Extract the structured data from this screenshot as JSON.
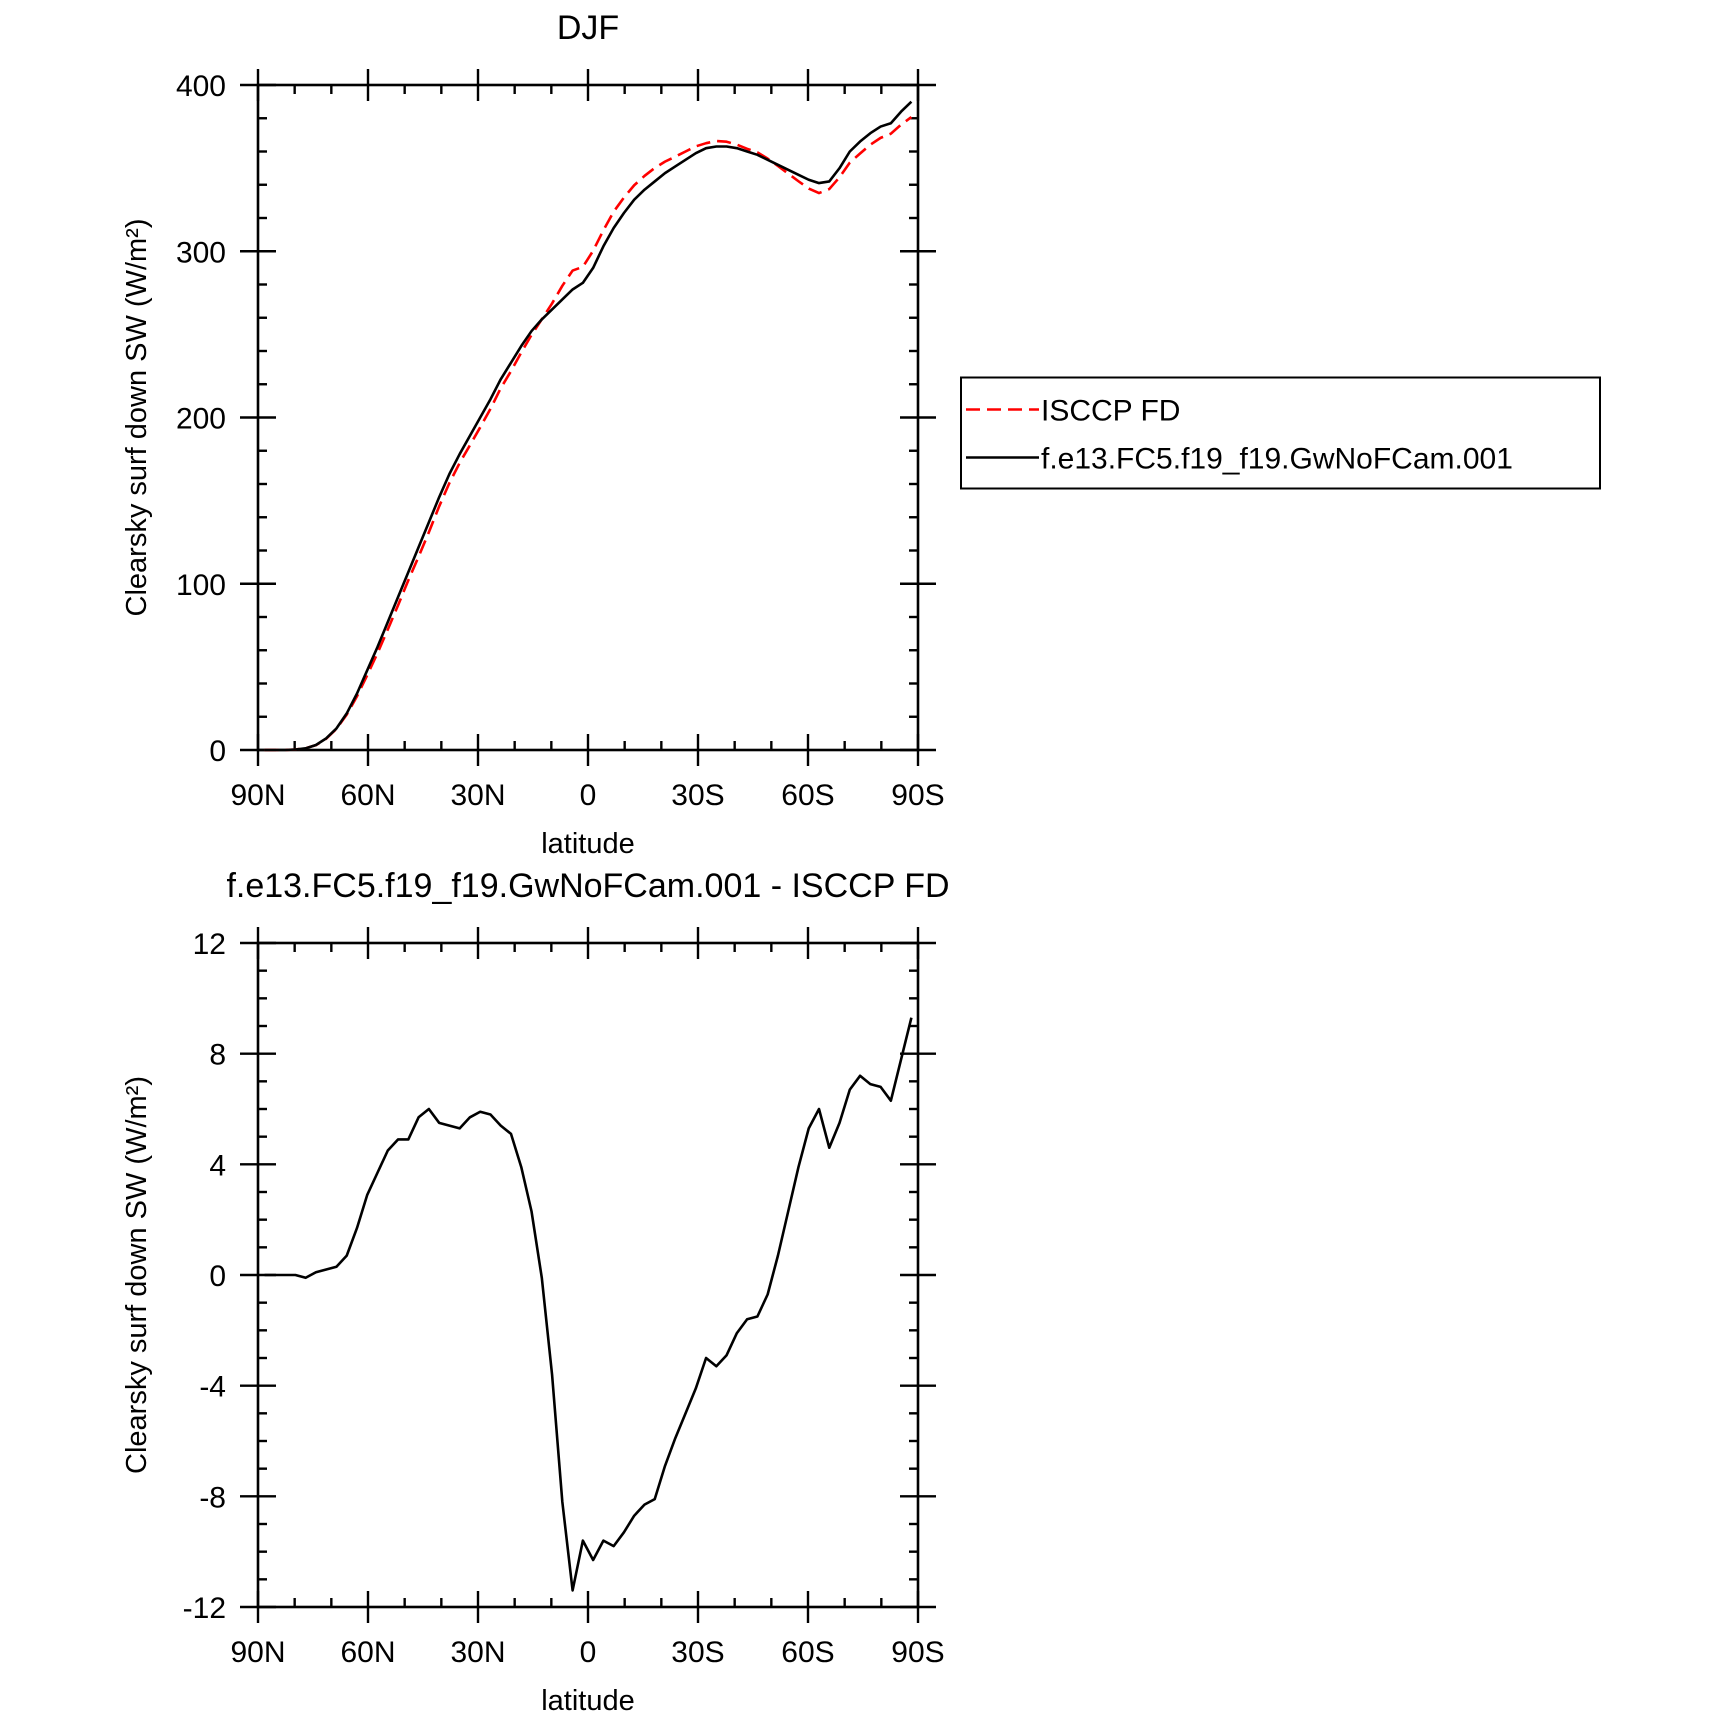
{
  "chart_data": [
    {
      "type": "line",
      "title": "DJF",
      "xlabel": "latitude",
      "ylabel": "Clearsky surf down SW (W/m²)",
      "x": [
        88.2,
        85.4,
        82.6,
        79.8,
        77,
        74.2,
        71.4,
        68.6,
        65.8,
        63,
        60.2,
        57.4,
        54.6,
        51.8,
        49,
        46.2,
        43.4,
        40.6,
        37.8,
        35,
        32.2,
        29.4,
        26.6,
        23.8,
        21,
        18.2,
        15.4,
        12.6,
        9.8,
        7,
        4.2,
        1.4,
        -1.4,
        -4.2,
        -7,
        -9.8,
        -12.6,
        -15.4,
        -18.2,
        -21,
        -23.8,
        -26.6,
        -29.4,
        -32.2,
        -35,
        -37.8,
        -40.6,
        -43.4,
        -46.2,
        -49,
        -51.8,
        -54.6,
        -57.4,
        -60.2,
        -63,
        -65.8,
        -68.6,
        -71.4,
        -74.2,
        -77,
        -79.8,
        -82.6,
        -85.4,
        -88.2
      ],
      "series": [
        {
          "name": "ISCCP FD",
          "color": "#ff0000",
          "line_style": "dashed",
          "values": [
            0,
            0,
            0,
            0.3,
            1.1,
            2.9,
            6.8,
            12.7,
            21.3,
            32.3,
            45.1,
            58.3,
            72.5,
            87.1,
            102.1,
            116.3,
            131,
            146.5,
            160.6,
            172.7,
            183.3,
            194.1,
            205.2,
            217.6,
            227.9,
            239.1,
            249.7,
            259.1,
            268.6,
            279.2,
            288.4,
            290.6,
            300.3,
            312.6,
            323.8,
            332.3,
            339.7,
            345.3,
            350.1,
            353.9,
            356.9,
            360,
            363.1,
            365,
            366.3,
            365.9,
            364.1,
            361.6,
            359.5,
            355.7,
            351.3,
            346.7,
            342.1,
            337.7,
            335,
            337.4,
            344.5,
            353.3,
            358.8,
            364.1,
            368.2,
            370.7,
            376.2,
            380.7
          ]
        },
        {
          "name": "f.e13.FC5.f19_f19.GwNoFCam.001",
          "color": "#000000",
          "line_style": "solid",
          "values": [
            0,
            0,
            0,
            0.3,
            1,
            3,
            7,
            13,
            22,
            34,
            48,
            62,
            77,
            92,
            107,
            122,
            137,
            152,
            166,
            178,
            189,
            200,
            211,
            223,
            233,
            243,
            252,
            259,
            265,
            271,
            277,
            281,
            290,
            303,
            314,
            323,
            331,
            337,
            342,
            347,
            351,
            355,
            359,
            362,
            363,
            363,
            362,
            360,
            358,
            355,
            352,
            349,
            346,
            343,
            341,
            342,
            350,
            360,
            366,
            371,
            375,
            377,
            384,
            390
          ]
        }
      ],
      "xlim": [
        90,
        -90
      ],
      "xticks": [
        {
          "value": 90,
          "label": "90N"
        },
        {
          "value": 60,
          "label": "60N"
        },
        {
          "value": 30,
          "label": "30N"
        },
        0,
        {
          "value": -30,
          "label": "30S"
        },
        {
          "value": -60,
          "label": "60S"
        },
        {
          "value": -90,
          "label": "90S"
        }
      ],
      "ylim": [
        0,
        400
      ],
      "yticks": [
        0,
        100,
        200,
        300,
        400
      ],
      "legend": "right"
    },
    {
      "type": "line",
      "title": "f.e13.FC5.f19_f19.GwNoFCam.001 - ISCCP FD",
      "xlabel": "latitude",
      "ylabel": "Clearsky surf down SW (W/m²)",
      "x": [
        88.2,
        85.4,
        82.6,
        79.8,
        77,
        74.2,
        71.4,
        68.6,
        65.8,
        63,
        60.2,
        57.4,
        54.6,
        51.8,
        49,
        46.2,
        43.4,
        40.6,
        37.8,
        35,
        32.2,
        29.4,
        26.6,
        23.8,
        21,
        18.2,
        15.4,
        12.6,
        9.8,
        7,
        4.2,
        1.4,
        -1.4,
        -4.2,
        -7,
        -9.8,
        -12.6,
        -15.4,
        -18.2,
        -21,
        -23.8,
        -26.6,
        -29.4,
        -32.2,
        -35,
        -37.8,
        -40.6,
        -43.4,
        -46.2,
        -49,
        -51.8,
        -54.6,
        -57.4,
        -60.2,
        -63,
        -65.8,
        -68.6,
        -71.4,
        -74.2,
        -77,
        -79.8,
        -82.6,
        -85.4,
        -88.2
      ],
      "values": [
        0,
        0,
        0,
        0,
        -0.1,
        0.1,
        0.2,
        0.3,
        0.7,
        1.7,
        2.9,
        3.7,
        4.5,
        4.9,
        4.9,
        5.7,
        6,
        5.5,
        5.4,
        5.3,
        5.7,
        5.9,
        5.8,
        5.4,
        5.1,
        3.9,
        2.3,
        -0.1,
        -3.6,
        -8.2,
        -11.4,
        -9.6,
        -10.3,
        -9.6,
        -9.8,
        -9.3,
        -8.7,
        -8.3,
        -8.1,
        -6.9,
        -5.9,
        -5,
        -4.1,
        -3,
        -3.3,
        -2.9,
        -2.1,
        -1.6,
        -1.5,
        -0.7,
        0.7,
        2.3,
        3.9,
        5.3,
        6,
        4.6,
        5.5,
        6.7,
        7.2,
        6.9,
        6.8,
        6.3,
        7.8,
        9.3
      ],
      "color": "#000000",
      "xlim": [
        90,
        -90
      ],
      "xticks": [
        {
          "value": 90,
          "label": "90N"
        },
        {
          "value": 60,
          "label": "60N"
        },
        {
          "value": 30,
          "label": "30N"
        },
        0,
        {
          "value": -30,
          "label": "30S"
        },
        {
          "value": -60,
          "label": "60S"
        },
        {
          "value": -90,
          "label": "90S"
        }
      ],
      "ylim": [
        -12,
        12
      ],
      "yticks": [
        -12,
        -8,
        -4,
        0,
        4,
        8,
        12
      ]
    }
  ]
}
